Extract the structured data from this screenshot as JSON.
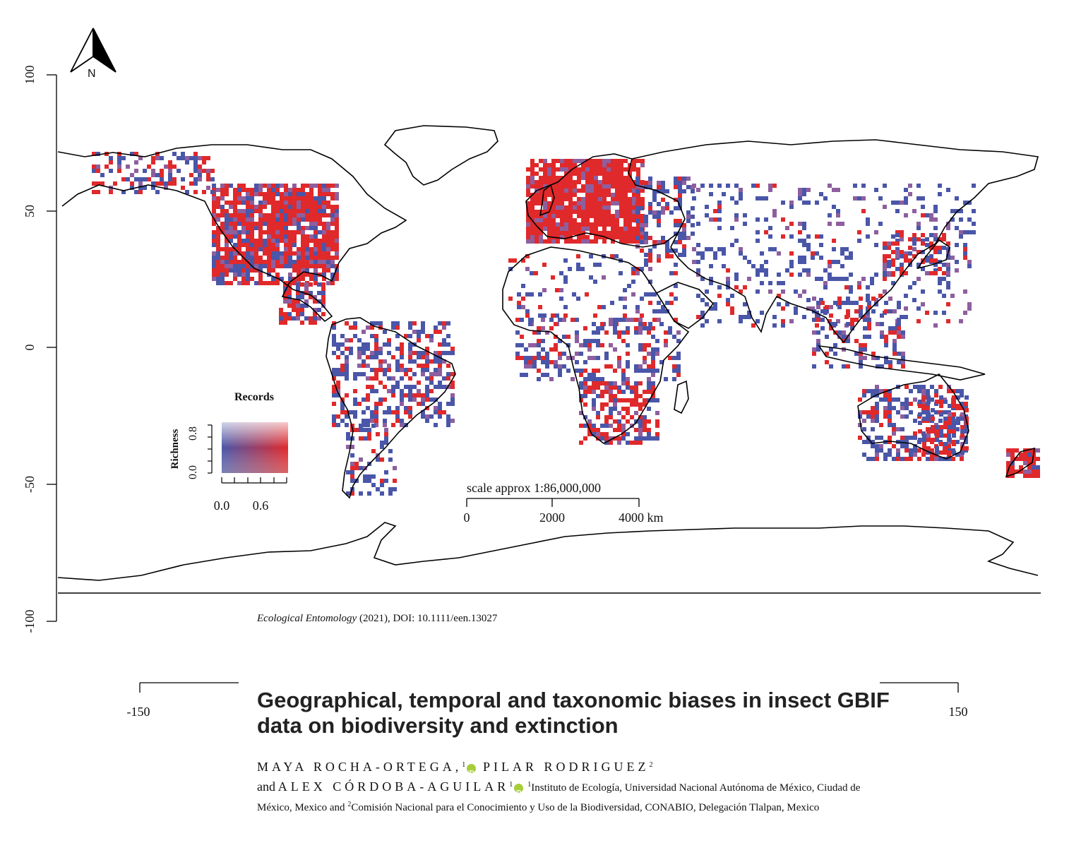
{
  "map": {
    "north_label": "N",
    "y_ticks": [
      "100",
      "50",
      "0",
      "-50",
      "-100"
    ],
    "x_ticks": [
      "-150",
      "150"
    ],
    "scale_title": "scale approx 1:86,000,000",
    "scale_ticks": [
      "0",
      "2000",
      "4000 km"
    ],
    "legend": {
      "title": "Records",
      "ylabel": "Richness",
      "y_ticks": [
        "0.0",
        "0.8"
      ],
      "x_ticks": [
        "0.0",
        "0.6"
      ]
    },
    "colors": {
      "high": "#e0292b",
      "low": "#4a56a8",
      "mix": "#8e5f9e",
      "coast": "#000000"
    }
  },
  "citation": {
    "journal": "Ecological Entomology",
    "rest": " (2021), DOI: 10.1111/een.13027"
  },
  "paper": {
    "title": "Geographical, temporal and taxonomic biases in insect GBIF data on biodiversity and extinction",
    "author1": "MAYA ROCHA-ORTEGA,",
    "author1_sup": "1",
    "author2": "PILAR RODRIGUEZ",
    "author2_sup": "2",
    "and": "and",
    "author3": "ALEX CÓRDOBA-AGUILAR",
    "author3_sup": "1",
    "aff1_sup": "1",
    "aff1": "Instituto de Ecología, Universidad Nacional Autónoma de México, Ciudad de México, Mexico and ",
    "aff2_sup": "2",
    "aff2": "Comisión Nacional para el Conocimiento y Uso de la Biodiversidad, CONABIO, Delegación Tlalpan, Mexico"
  }
}
